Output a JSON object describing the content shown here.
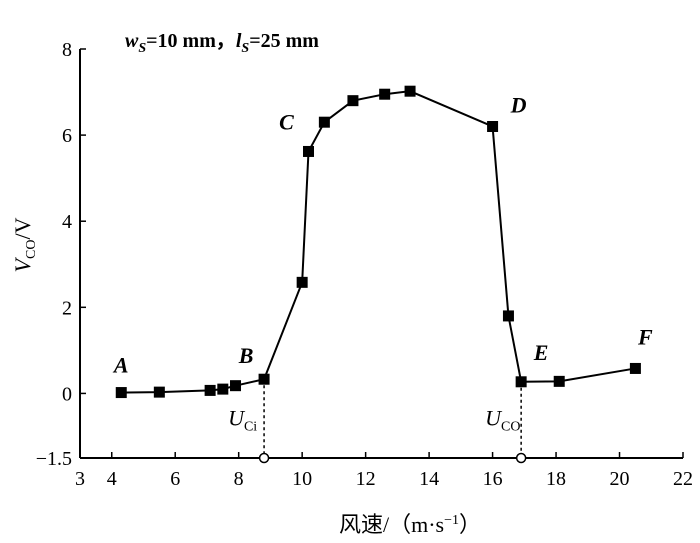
{
  "chart_data": {
    "type": "line",
    "annotation": {
      "w_var": "w",
      "w_sub": "S",
      "w_value": "=10 mm，",
      "l_var": "l",
      "l_sub": "S",
      "l_value": "=25 mm"
    },
    "xlabel": "风速/（m·s",
    "xlabel_sup": "−1",
    "xlabel_tail": "）",
    "ylabel_var": "V",
    "ylabel_sub": "CO",
    "ylabel_tail": "/V",
    "xlim": [
      3,
      22
    ],
    "ylim": [
      -1.5,
      8
    ],
    "x_ticks": [
      3,
      4,
      6,
      8,
      10,
      12,
      14,
      16,
      18,
      20,
      22
    ],
    "x_tick_labels": [
      "3",
      "4",
      "6",
      "8",
      "10",
      "12",
      "14",
      "16",
      "18",
      "20",
      "22"
    ],
    "y_ticks": [
      -1.5,
      0,
      2,
      4,
      6,
      8
    ],
    "y_tick_labels": [
      "−1.5",
      "0",
      "2",
      "4",
      "6",
      "8"
    ],
    "series": [
      {
        "marker": "square",
        "color": "#000000",
        "points": [
          {
            "x": 4.3,
            "y": 0.02
          },
          {
            "x": 5.5,
            "y": 0.03
          },
          {
            "x": 7.1,
            "y": 0.07
          },
          {
            "x": 7.5,
            "y": 0.1
          },
          {
            "x": 7.9,
            "y": 0.18
          },
          {
            "x": 8.8,
            "y": 0.33
          },
          {
            "x": 10.0,
            "y": 2.58
          },
          {
            "x": 10.2,
            "y": 5.62
          },
          {
            "x": 10.7,
            "y": 6.3
          },
          {
            "x": 11.6,
            "y": 6.8
          },
          {
            "x": 12.6,
            "y": 6.95
          },
          {
            "x": 13.4,
            "y": 7.02
          },
          {
            "x": 16.0,
            "y": 6.2
          },
          {
            "x": 16.5,
            "y": 1.8
          },
          {
            "x": 16.9,
            "y": 0.27
          },
          {
            "x": 18.1,
            "y": 0.28
          },
          {
            "x": 20.5,
            "y": 0.58
          }
        ]
      }
    ],
    "point_labels": [
      {
        "text": "A",
        "x": 4.3,
        "y": 0.02
      },
      {
        "text": "B",
        "x": 8.8,
        "y": 0.33
      },
      {
        "text": "C",
        "x": 10.2,
        "y": 5.62
      },
      {
        "text": "D",
        "x": 16.0,
        "y": 6.2
      },
      {
        "text": "E",
        "x": 16.9,
        "y": 0.27
      },
      {
        "text": "F",
        "x": 20.5,
        "y": 0.58
      }
    ],
    "vlines": [
      {
        "x": 8.8,
        "from_y": 0.33,
        "label_var": "U",
        "label_sub": "Ci"
      },
      {
        "x": 16.9,
        "from_y": 0.27,
        "label_var": "U",
        "label_sub": "CO"
      }
    ]
  }
}
